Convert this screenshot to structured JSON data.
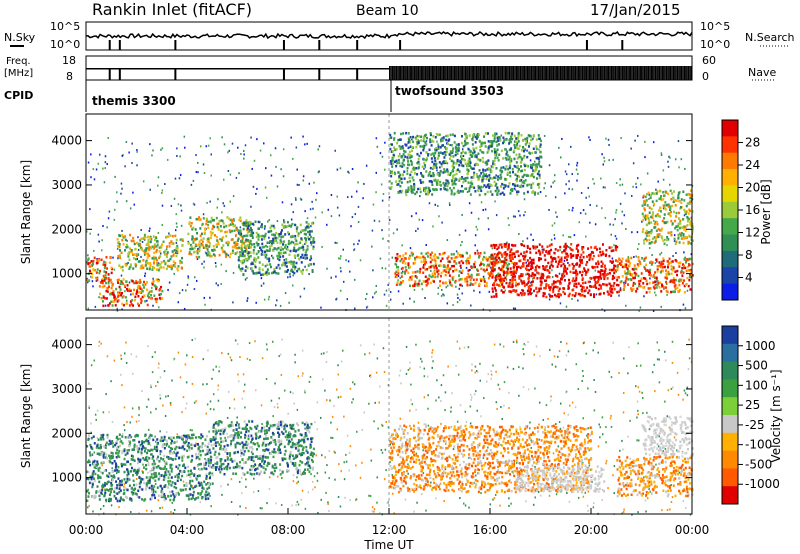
{
  "header": {
    "title": "Rankin Inlet (fitACF)",
    "beam": "Beam 10",
    "date": "17/Jan/2015"
  },
  "top_panels": {
    "nsky_label": "N.Sky",
    "nsky_ticks": [
      "10^5",
      "10^0"
    ],
    "nsearch_label": "N.Search",
    "nsearch_ticks": [
      "10^5",
      "10^0"
    ],
    "freq_label_1": "Freq.",
    "freq_label_2": "[MHz]",
    "freq_ticks": [
      "18",
      "8"
    ],
    "nave_label": "Nave",
    "nave_ticks": [
      "60",
      "0"
    ],
    "cpid_label": "CPID",
    "cpid_modes": [
      {
        "name": "themis 3300",
        "start_hour": 0
      },
      {
        "name": "twofsound 3503",
        "start_hour": 12
      }
    ]
  },
  "chart_data": [
    {
      "type": "heatmap",
      "panel": "power",
      "ylabel": "Slant Range [km]",
      "xlim_hours": [
        0,
        24
      ],
      "ylim": [
        180,
        4600
      ],
      "yticks": [
        1000,
        2000,
        3000,
        4000
      ],
      "colorbar": {
        "label": "Power [dB]",
        "ticks": [
          "28",
          "24",
          "20",
          "16",
          "12",
          "8",
          "4"
        ],
        "colors": [
          "#e00000",
          "#ff3300",
          "#ff7a00",
          "#ffb000",
          "#e6d600",
          "#9ccb3a",
          "#45a84a",
          "#2f8f55",
          "#1f6b7a",
          "#1a44a8",
          "#0a1ee6"
        ]
      },
      "features": [
        {
          "hours": [
            0.0,
            1.0
          ],
          "range": [
            850,
            1400
          ],
          "level": "high"
        },
        {
          "hours": [
            0.5,
            3.0
          ],
          "range": [
            300,
            900
          ],
          "level": "high"
        },
        {
          "hours": [
            1.2,
            3.8
          ],
          "range": [
            1100,
            1900
          ],
          "level": "medium"
        },
        {
          "hours": [
            4.0,
            6.5
          ],
          "range": [
            1400,
            2300
          ],
          "level": "medium"
        },
        {
          "hours": [
            6.0,
            9.0
          ],
          "range": [
            1000,
            2200
          ],
          "level": "low"
        },
        {
          "hours": [
            12.2,
            17.0
          ],
          "range": [
            750,
            1500
          ],
          "level": "high"
        },
        {
          "hours": [
            16.0,
            21.0
          ],
          "range": [
            500,
            1700
          ],
          "level": "very-high"
        },
        {
          "hours": [
            21.0,
            24.0
          ],
          "range": [
            600,
            1400
          ],
          "level": "high"
        },
        {
          "hours": [
            22.0,
            24.0
          ],
          "range": [
            1700,
            2900
          ],
          "level": "medium"
        },
        {
          "hours": [
            12.0,
            18.0
          ],
          "range": [
            2800,
            4200
          ],
          "level": "low"
        }
      ]
    },
    {
      "type": "heatmap",
      "panel": "velocity",
      "ylabel": "Slant Range [km]",
      "xlabel": "Time UT",
      "xlim_hours": [
        0,
        24
      ],
      "ylim": [
        180,
        4600
      ],
      "yticks": [
        1000,
        2000,
        3000,
        4000
      ],
      "xticks": [
        "00:00",
        "04:00",
        "08:00",
        "12:00",
        "16:00",
        "20:00",
        "00:00"
      ],
      "colorbar": {
        "label": "Velocity [m s⁻¹]",
        "ticks": [
          "1000",
          "500",
          "100",
          "25",
          "-25",
          "-100",
          "-500",
          "-1000"
        ],
        "colors": [
          "#1a3fa0",
          "#2a6fa0",
          "#2e8a5a",
          "#3aa040",
          "#7dcf3a",
          "#c8c8c8",
          "#ffb000",
          "#ff8a00",
          "#ff5a00",
          "#e00000"
        ]
      },
      "features": [
        {
          "hours": [
            0.0,
            5.0
          ],
          "range": [
            500,
            2000
          ],
          "level": "positive"
        },
        {
          "hours": [
            5.0,
            9.0
          ],
          "range": [
            1100,
            2300
          ],
          "level": "positive"
        },
        {
          "hours": [
            12.0,
            20.0
          ],
          "range": [
            700,
            2200
          ],
          "level": "negative"
        },
        {
          "hours": [
            17.0,
            20.5
          ],
          "range": [
            700,
            1300
          ],
          "level": "ground"
        },
        {
          "hours": [
            22.0,
            24.0
          ],
          "range": [
            1500,
            2400
          ],
          "level": "ground"
        },
        {
          "hours": [
            21.0,
            24.0
          ],
          "range": [
            600,
            1500
          ],
          "level": "negative"
        }
      ]
    }
  ]
}
